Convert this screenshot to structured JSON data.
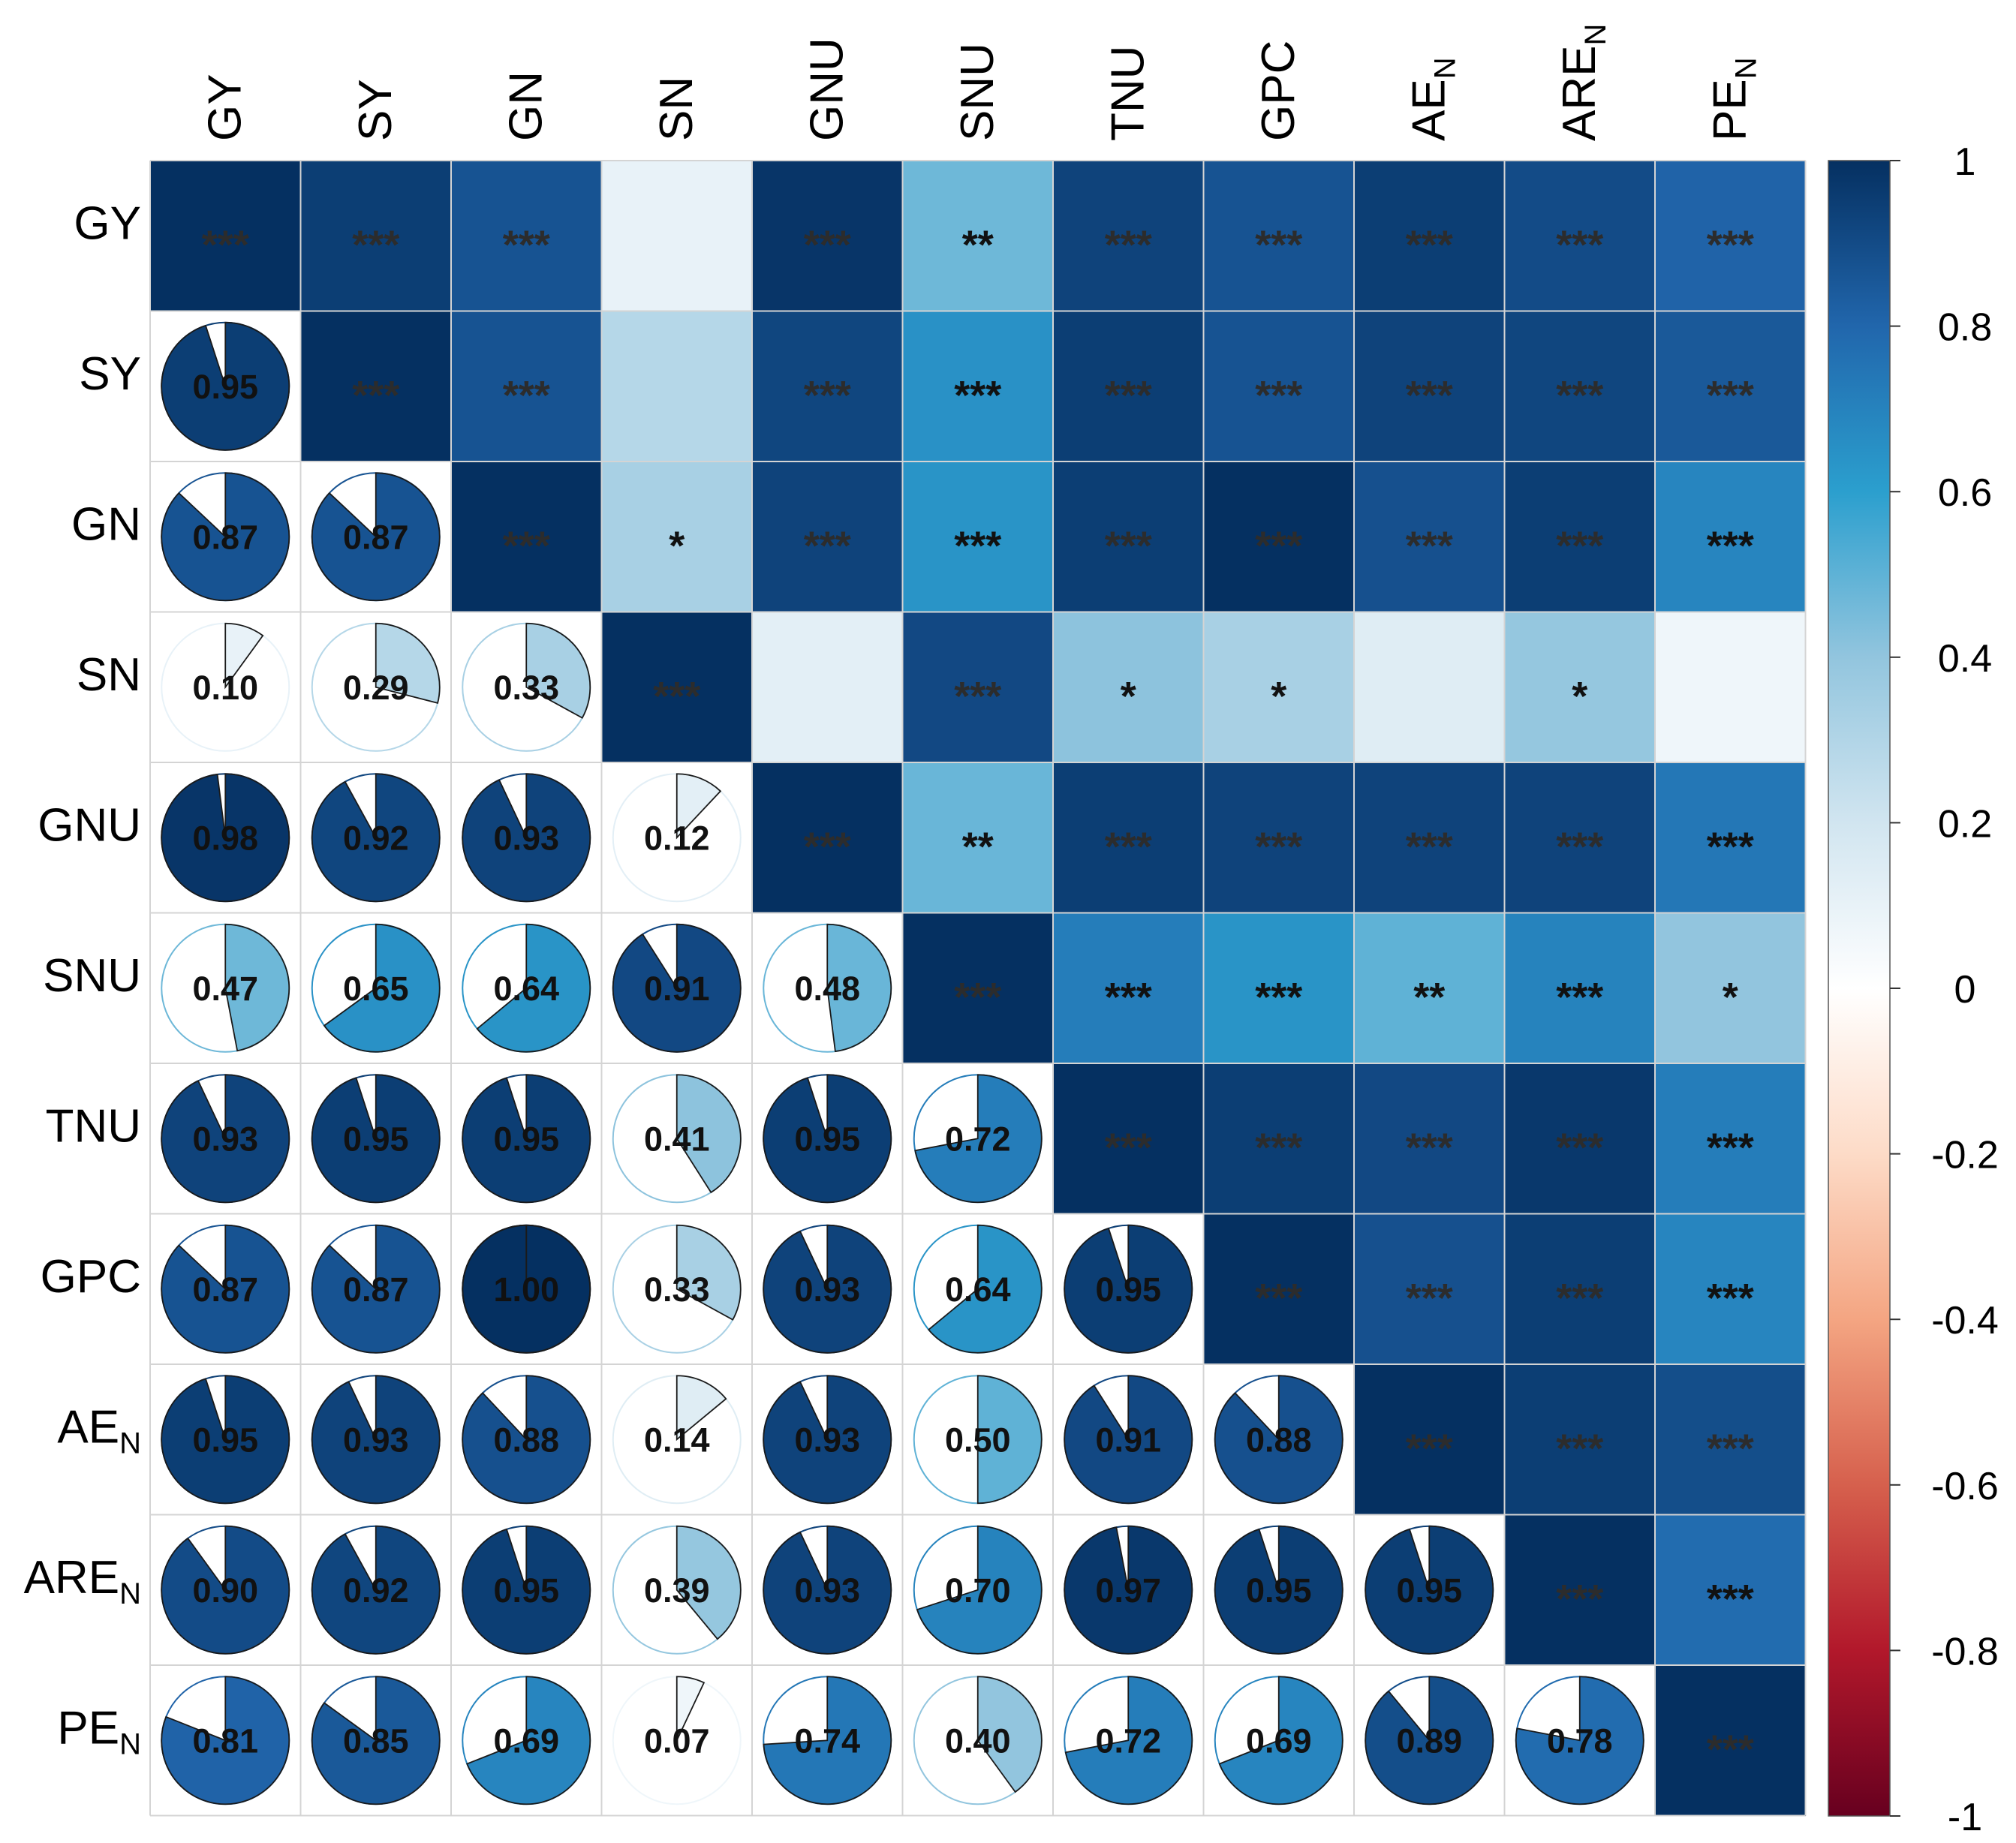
{
  "chart_data": {
    "type": "heatmap",
    "title": "",
    "variables": [
      {
        "base": "GY",
        "sub": ""
      },
      {
        "base": "SY",
        "sub": ""
      },
      {
        "base": "GN",
        "sub": ""
      },
      {
        "base": "SN",
        "sub": ""
      },
      {
        "base": "GNU",
        "sub": ""
      },
      {
        "base": "SNU",
        "sub": ""
      },
      {
        "base": "TNU",
        "sub": ""
      },
      {
        "base": "GPC",
        "sub": ""
      },
      {
        "base": "AE",
        "sub": "N"
      },
      {
        "base": "ARE",
        "sub": "N"
      },
      {
        "base": "PE",
        "sub": "N"
      }
    ],
    "lower_triangle": "pie",
    "upper_triangle": "square_with_significance",
    "correlations": [
      [
        1.0,
        0.95,
        0.87,
        0.1,
        0.98,
        0.47,
        0.93,
        0.87,
        0.95,
        0.9,
        0.81
      ],
      [
        0.95,
        1.0,
        0.87,
        0.29,
        0.92,
        0.65,
        0.95,
        0.87,
        0.93,
        0.92,
        0.85
      ],
      [
        0.87,
        0.87,
        1.0,
        0.33,
        0.93,
        0.64,
        0.95,
        1.0,
        0.88,
        0.95,
        0.69
      ],
      [
        0.1,
        0.29,
        0.33,
        1.0,
        0.12,
        0.91,
        0.41,
        0.33,
        0.14,
        0.39,
        0.07
      ],
      [
        0.98,
        0.92,
        0.93,
        0.12,
        1.0,
        0.48,
        0.95,
        0.93,
        0.93,
        0.93,
        0.74
      ],
      [
        0.47,
        0.65,
        0.64,
        0.91,
        0.48,
        1.0,
        0.72,
        0.64,
        0.5,
        0.7,
        0.4
      ],
      [
        0.93,
        0.95,
        0.95,
        0.41,
        0.95,
        0.72,
        1.0,
        0.95,
        0.91,
        0.97,
        0.72
      ],
      [
        0.87,
        0.87,
        1.0,
        0.33,
        0.93,
        0.64,
        0.95,
        1.0,
        0.88,
        0.95,
        0.69
      ],
      [
        0.95,
        0.93,
        0.88,
        0.14,
        0.93,
        0.5,
        0.91,
        0.88,
        1.0,
        0.95,
        0.89
      ],
      [
        0.9,
        0.92,
        0.95,
        0.39,
        0.93,
        0.7,
        0.97,
        0.95,
        0.95,
        1.0,
        0.78
      ],
      [
        0.81,
        0.85,
        0.69,
        0.07,
        0.74,
        0.4,
        0.72,
        0.69,
        0.89,
        0.78,
        1.0
      ]
    ],
    "value_labels": [
      [
        "",
        "",
        "",
        "",
        "",
        "",
        "",
        "",
        "",
        "",
        ""
      ],
      [
        "0.95",
        "",
        "",
        "",
        "",
        "",
        "",
        "",
        "",
        "",
        ""
      ],
      [
        "0.87",
        "0.87",
        "",
        "",
        "",
        "",
        "",
        "",
        "",
        "",
        ""
      ],
      [
        "0.10",
        "0.29",
        "0.33",
        "",
        "",
        "",
        "",
        "",
        "",
        "",
        ""
      ],
      [
        "0.98",
        "0.92",
        "0.93",
        "0.12",
        "",
        "",
        "",
        "",
        "",
        "",
        ""
      ],
      [
        "0.47",
        "0.65",
        "0.64",
        "0.91",
        "0.48",
        "",
        "",
        "",
        "",
        "",
        ""
      ],
      [
        "0.93",
        "0.95",
        "0.95",
        "0.41",
        "0.95",
        "0.72",
        "",
        "",
        "",
        "",
        ""
      ],
      [
        "0.87",
        "0.87",
        "1.00",
        "0.33",
        "0.93",
        "0.64",
        "0.95",
        "",
        "",
        "",
        ""
      ],
      [
        "0.95",
        "0.93",
        "0.88",
        "0.14",
        "0.93",
        "0.50",
        "0.91",
        "0.88",
        "",
        "",
        ""
      ],
      [
        "0.90",
        "0.92",
        "0.95",
        "0.39",
        "0.93",
        "0.70",
        "0.97",
        "0.95",
        "0.95",
        "",
        ""
      ],
      [
        "0.81",
        "0.85",
        "0.69",
        "0.07",
        "0.74",
        "0.40",
        "0.72",
        "0.69",
        "0.89",
        "0.78",
        ""
      ]
    ],
    "significance": [
      [
        "***",
        "***",
        "***",
        "",
        "***",
        "**",
        "***",
        "***",
        "***",
        "***",
        "***"
      ],
      [
        "",
        "***",
        "***",
        "",
        "***",
        "***",
        "***",
        "***",
        "***",
        "***",
        "***"
      ],
      [
        "",
        "",
        "***",
        "*",
        "***",
        "***",
        "***",
        "***",
        "***",
        "***",
        "***"
      ],
      [
        "",
        "",
        "",
        "***",
        "",
        "***",
        "*",
        "*",
        "",
        "*",
        ""
      ],
      [
        "",
        "",
        "",
        "",
        "***",
        "**",
        "***",
        "***",
        "***",
        "***",
        "***"
      ],
      [
        "",
        "",
        "",
        "",
        "",
        "***",
        "***",
        "***",
        "**",
        "***",
        "*"
      ],
      [
        "",
        "",
        "",
        "",
        "",
        "",
        "***",
        "***",
        "***",
        "***",
        "***"
      ],
      [
        "",
        "",
        "",
        "",
        "",
        "",
        "",
        "***",
        "***",
        "***",
        "***"
      ],
      [
        "",
        "",
        "",
        "",
        "",
        "",
        "",
        "",
        "***",
        "***",
        "***"
      ],
      [
        "",
        "",
        "",
        "",
        "",
        "",
        "",
        "",
        "",
        "***",
        "***"
      ],
      [
        "",
        "",
        "",
        "",
        "",
        "",
        "",
        "",
        "",
        "",
        "***"
      ]
    ],
    "colorbar": {
      "range": [
        -1,
        1
      ],
      "ticks": [
        "1",
        "0.8",
        "0.6",
        "0.4",
        "0.2",
        "0",
        "-0.2",
        "-0.4",
        "-0.6",
        "-0.8",
        "-1"
      ],
      "tick_values": [
        1,
        0.8,
        0.6,
        0.4,
        0.2,
        0,
        -0.2,
        -0.4,
        -0.6,
        -0.8,
        -1
      ],
      "palette": "RdBu",
      "colors": [
        "#67001f",
        "#b2182b",
        "#d6604d",
        "#f4a582",
        "#fddbc7",
        "#ffffff",
        "#d1e5f0",
        "#92c5de",
        "#2b9fce",
        "#2166ac",
        "#053061"
      ]
    }
  }
}
